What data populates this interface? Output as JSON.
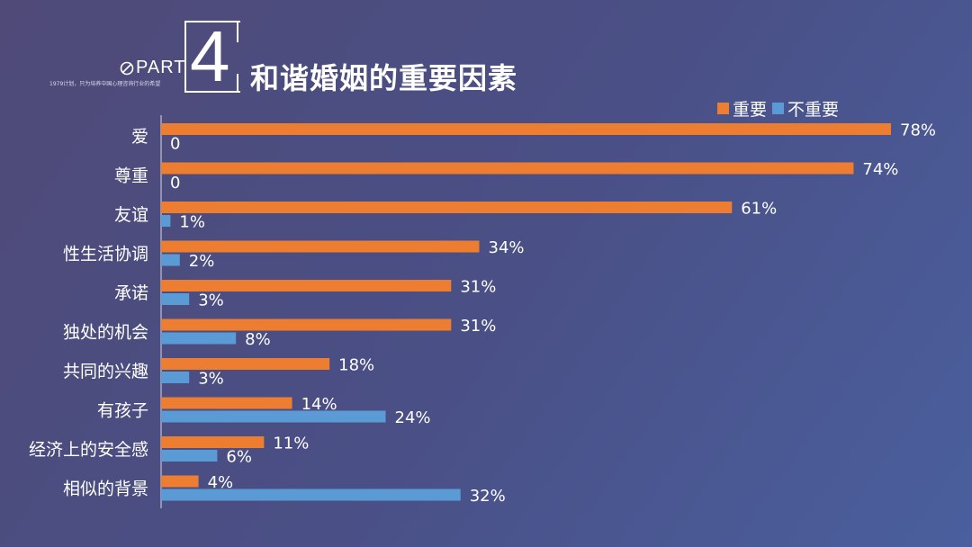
{
  "header": {
    "part_label": "PART",
    "part_number": "4",
    "subtitle": "1979计划，只为培养中国心理咨询行业的希望",
    "title": "和谐婚姻的重要因素"
  },
  "colors": {
    "important": "#ed7d31",
    "unimportant": "#5b9bd5"
  },
  "chart_data": {
    "type": "bar",
    "orientation": "horizontal",
    "categories": [
      "爱",
      "尊重",
      "友谊",
      "性生活协调",
      "承诺",
      "独处的机会",
      "共同的兴趣",
      "有孩子",
      "经济上的安全感",
      "相似的背景"
    ],
    "series": [
      {
        "name": "重要",
        "values": [
          78,
          74,
          61,
          34,
          31,
          31,
          18,
          14,
          11,
          4
        ],
        "labels": [
          "78%",
          "74%",
          "61%",
          "34%",
          "31%",
          "31%",
          "18%",
          "14%",
          "11%",
          "4%"
        ]
      },
      {
        "name": "不重要",
        "values": [
          0,
          0,
          1,
          2,
          3,
          8,
          3,
          24,
          6,
          32
        ],
        "labels": [
          "0",
          "0",
          "1%",
          "2%",
          "3%",
          "8%",
          "3%",
          "24%",
          "6%",
          "32%"
        ]
      }
    ],
    "legend_position": "top-right",
    "grid": false
  }
}
